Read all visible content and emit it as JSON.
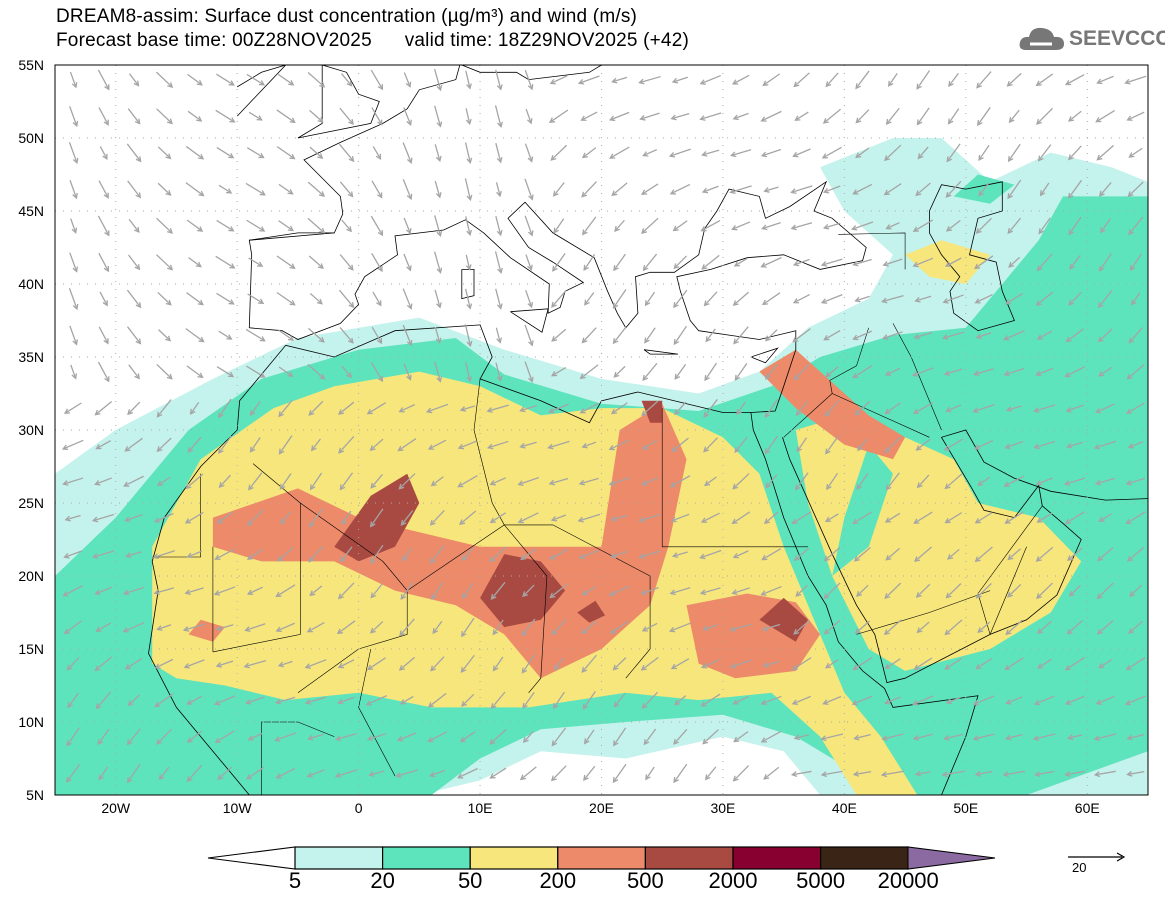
{
  "header": {
    "title_line1": "DREAM8-assim: Surface dust concentration (µg/m³) and wind (m/s)",
    "title_line2": "Forecast base time: 00Z28NOV2025      valid time: 18Z29NOV2025 (+42)",
    "logo_text": "SEEVCCC"
  },
  "axes": {
    "lat_labels": [
      "55N",
      "50N",
      "45N",
      "40N",
      "35N",
      "30N",
      "25N",
      "20N",
      "15N",
      "10N",
      "5N"
    ],
    "lon_labels": [
      "20W",
      "10W",
      "0",
      "10E",
      "20E",
      "30E",
      "40E",
      "50E",
      "60E"
    ]
  },
  "colorbar": {
    "labels": [
      "5",
      "20",
      "50",
      "200",
      "500",
      "2000",
      "5000",
      "20000"
    ],
    "colors": [
      "#c4f2ec",
      "#5ee4bc",
      "#f7e67c",
      "#ec8a6a",
      "#a94a42",
      "#870030",
      "#3a2415"
    ],
    "over_color": "#8a6aa0"
  },
  "wind_reference": {
    "label": "20"
  }
}
